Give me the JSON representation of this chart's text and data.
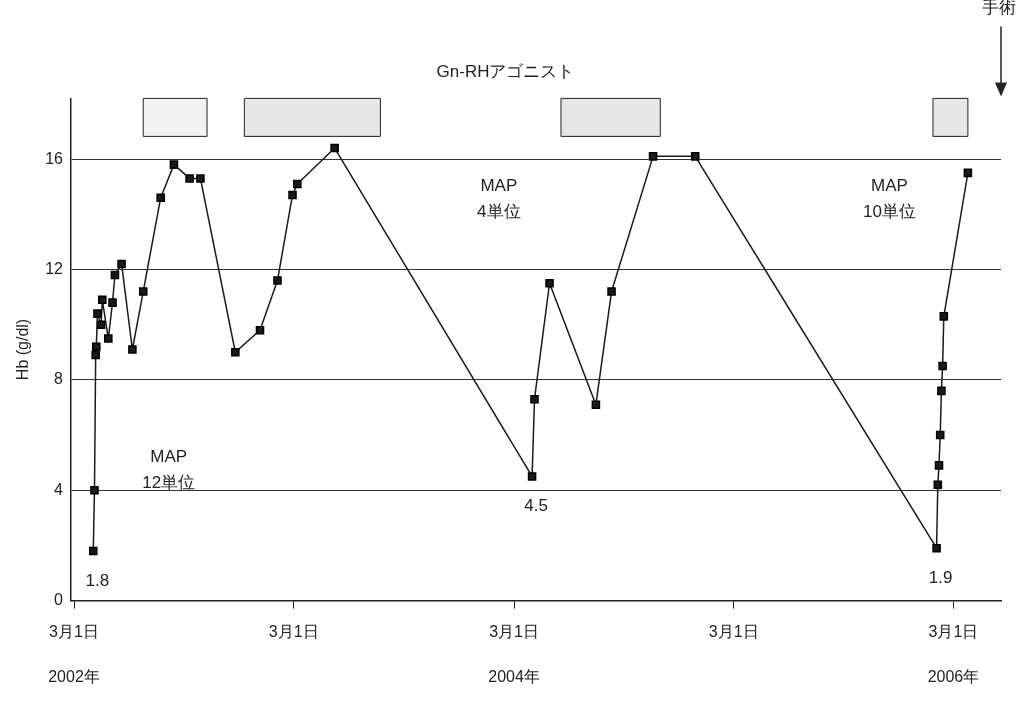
{
  "chart_data": {
    "type": "line",
    "title": "Gn-RHアゴニスト",
    "ylabel": "Hb (g/dl)",
    "x": [
      "2002-04-02",
      "2002-04-04",
      "2002-04-06",
      "2002-04-07",
      "2002-04-09",
      "2002-04-15",
      "2002-04-17",
      "2002-04-27",
      "2002-05-04",
      "2002-05-08",
      "2002-05-19",
      "2002-06-06",
      "2002-06-24",
      "2002-07-23",
      "2002-08-14",
      "2002-09-09",
      "2002-09-27",
      "2002-11-24",
      "2003-01-04",
      "2003-02-02",
      "2003-02-27",
      "2003-03-07",
      "2003-05-08",
      "2004-03-31",
      "2004-04-04",
      "2004-04-29",
      "2004-07-15",
      "2004-08-10",
      "2004-10-18",
      "2004-12-27",
      "2006-02-01",
      "2006-02-03",
      "2006-02-05",
      "2006-02-07",
      "2006-02-09",
      "2006-02-11",
      "2006-02-13",
      "2006-03-25"
    ],
    "series": [
      {
        "color": "#1a1a1a",
        "values": [
          1.8,
          4.0,
          8.9,
          9.2,
          10.4,
          10.0,
          10.9,
          9.5,
          10.8,
          11.8,
          12.2,
          9.1,
          11.2,
          14.6,
          15.8,
          15.3,
          15.3,
          9.0,
          9.8,
          11.6,
          14.7,
          15.1,
          16.4,
          4.5,
          7.3,
          11.5,
          7.1,
          11.2,
          16.1,
          16.1,
          1.9,
          4.2,
          4.9,
          6.0,
          7.6,
          8.5,
          10.3,
          15.5
        ],
        "value_labels": [
          "1.8",
          null,
          null,
          null,
          null,
          null,
          null,
          null,
          null,
          null,
          null,
          null,
          null,
          null,
          null,
          null,
          null,
          null,
          null,
          null,
          null,
          null,
          null,
          "4.5",
          null,
          null,
          null,
          null,
          null,
          null,
          "1.9",
          null,
          null,
          null,
          null,
          null,
          null,
          null
        ]
      }
    ],
    "xlim": [
      "2002-02-24",
      "2006-05-19"
    ],
    "xticks": [
      {
        "value": "2002-03-01",
        "label": "3月1日"
      },
      {
        "value": "2003-03-01",
        "label": "3月1日"
      },
      {
        "value": "2004-03-01",
        "label": "3月1日"
      },
      {
        "value": "2005-03-01",
        "label": "3月1日"
      },
      {
        "value": "2006-03-01",
        "label": "3月1日"
      }
    ],
    "x2lim": [
      "2002-02-24",
      "2006-05-19"
    ],
    "x2ticks": [
      {
        "value": "2002-03-01",
        "label": "2002年"
      },
      {
        "value": "2004-03-01",
        "label": "2004年"
      },
      {
        "value": "2006-03-01",
        "label": "2006年"
      }
    ],
    "ylim": [
      0,
      18.2
    ],
    "yticks": [
      0,
      4,
      8,
      12,
      16
    ],
    "grid": "y",
    "legend": false,
    "marker": "square",
    "line_style": "solid",
    "bands": [
      {
        "axis": "x",
        "from": "2002-06-24",
        "to": "2002-10-08",
        "color": "#f2f2f2"
      },
      {
        "axis": "x",
        "from": "2002-12-09",
        "to": "2003-07-23",
        "color": "#e6e6e6"
      },
      {
        "axis": "x",
        "from": "2004-05-18",
        "to": "2004-10-30",
        "color": "#e6e6e6"
      },
      {
        "axis": "x",
        "from": "2006-01-26",
        "to": "2006-03-25",
        "color": "#e6e6e6"
      }
    ],
    "annotations": [
      "MAP\n12単位",
      "MAP\n4単位",
      "MAP\n10単位",
      "手術"
    ]
  }
}
